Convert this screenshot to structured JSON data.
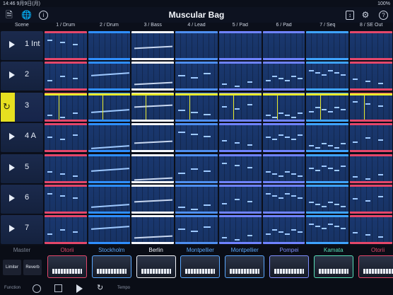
{
  "status": {
    "left": "14:46 9月9日(月)",
    "right": "100%"
  },
  "title": "Muscular Bag",
  "toolbar_icons": [
    "document-icon",
    "globe-icon",
    "info-icon",
    "scroll-icon",
    "gear-icon",
    "help-icon"
  ],
  "headers": {
    "scene": "Scene",
    "tracks": [
      "1 / Drum",
      "2 / Drum",
      "3 / Bass",
      "4 / Lead",
      "5 / Pad",
      "6 / Pad",
      "7 / Seq",
      "8 / SE Out"
    ]
  },
  "scenes": [
    {
      "name": "1 Int"
    },
    {
      "name": "2"
    },
    {
      "name": "3",
      "playing": true
    },
    {
      "name": "4 A"
    },
    {
      "name": "5"
    },
    {
      "name": "6"
    },
    {
      "name": "7"
    }
  ],
  "colors": {
    "drum": "#e4476a",
    "drum2": "#2f8fff",
    "bass": "#f4f6fb",
    "lead": "#4f8ff0",
    "pad": "#6f83ff",
    "pad2": "#6f83ff",
    "seq": "#3fa4ff",
    "se": "#e4476a",
    "playing": "#e6e020"
  },
  "master": {
    "label": "Master",
    "limiter": "Limiter",
    "reverb": "Reverb"
  },
  "instruments": [
    {
      "name": "Otorii",
      "color": "#e4476a"
    },
    {
      "name": "Stockholm",
      "color": "#5aa8ff"
    },
    {
      "name": "Berlin",
      "color": "#f4f6fb"
    },
    {
      "name": "Montpellier",
      "color": "#5aa8ff"
    },
    {
      "name": "Montpellier",
      "color": "#5aa8ff"
    },
    {
      "name": "Pompei",
      "color": "#7f8fff"
    },
    {
      "name": "Kamata",
      "color": "#58e0b8"
    },
    {
      "name": "Otorii",
      "color": "#e4476a"
    }
  ],
  "transport": {
    "function": "Function",
    "tempo": "Tempo"
  }
}
